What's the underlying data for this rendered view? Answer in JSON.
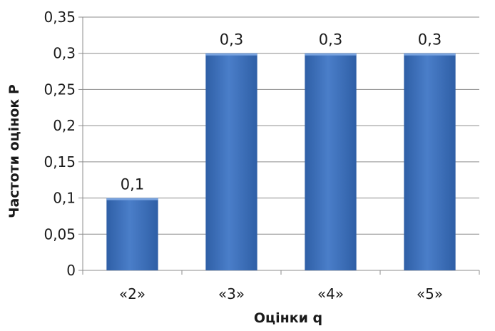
{
  "chart_data": {
    "type": "bar",
    "categories": [
      "«2»",
      "«3»",
      "«4»",
      "«5»"
    ],
    "values": [
      0.1,
      0.3,
      0.3,
      0.3
    ],
    "data_labels": [
      "0,1",
      "0,3",
      "0,3",
      "0,3"
    ],
    "xlabel": "Оцінки q",
    "ylabel": "Частоти оцінок Р",
    "ylim": [
      0,
      0.35
    ],
    "yticks": [
      0,
      0.05,
      0.1,
      0.15,
      0.2,
      0.25,
      0.3,
      0.35
    ],
    "ytick_labels": [
      "0",
      "0,05",
      "0,1",
      "0,15",
      "0,2",
      "0,25",
      "0,3",
      "0,35"
    ],
    "grid": true,
    "legend": "none",
    "bar_color": "#4a7ec9",
    "bar_color_dark": "#2f5fa6"
  }
}
